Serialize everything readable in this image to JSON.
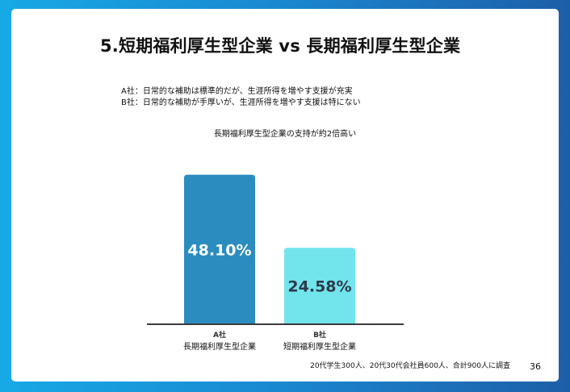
{
  "slide": {
    "title": "5.短期福利厚生型企業 vs 長期福利厚生型企業",
    "desc_a": "A社：日常的な補助は標準的だが、生涯所得を増やす支援が充実",
    "desc_b": "B社：日常的な補助が手厚いが、生涯所得を増やす支援は特にない",
    "footnote": "20代学生300人、20代30代会社員600人、合計900人に調査",
    "page_number": "36"
  },
  "colors": {
    "background_start": "#17a9e6",
    "background_end": "#1d5ea8",
    "bar_a": "#2b8cbf",
    "bar_b": "#72e4ec",
    "label_a": "#ffffff",
    "label_b": "#2d3a4a",
    "axis": "#3a3a3a"
  },
  "chart_data": {
    "type": "bar",
    "title": "長期福利厚生型企業の支持が約2倍高い",
    "categories": [
      {
        "line1": "A社",
        "line2": "長期福利厚生型企業"
      },
      {
        "line1": "B社",
        "line2": "短期福利厚生型企業"
      }
    ],
    "values": [
      48.1,
      24.58
    ],
    "data_labels": [
      "48.10%",
      "24.58%"
    ],
    "ylim": [
      0,
      55
    ],
    "grid": false,
    "legend": "none"
  }
}
